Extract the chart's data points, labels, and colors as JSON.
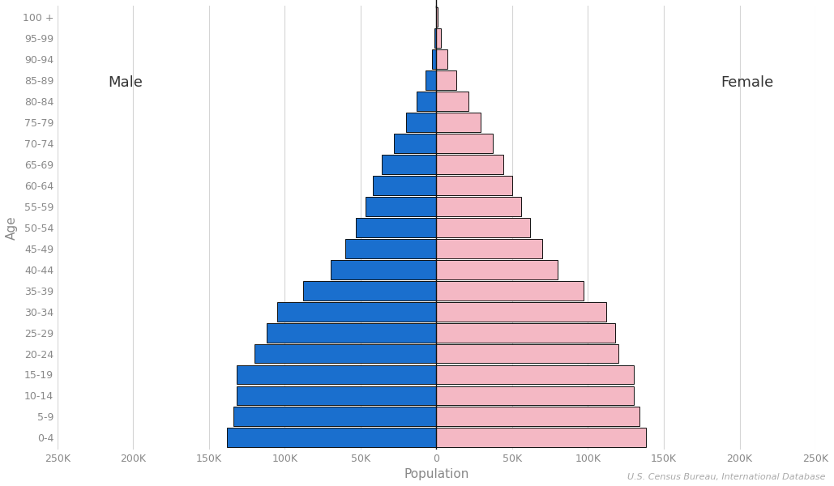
{
  "age_groups": [
    "0-4",
    "5-9",
    "10-14",
    "15-19",
    "20-24",
    "25-29",
    "30-34",
    "35-39",
    "40-44",
    "45-49",
    "50-54",
    "55-59",
    "60-64",
    "65-69",
    "70-74",
    "75-79",
    "80-84",
    "85-89",
    "90-94",
    "95-99",
    "100 +"
  ],
  "male": [
    138000,
    134000,
    132000,
    132000,
    120000,
    112000,
    105000,
    88000,
    70000,
    60000,
    53000,
    47000,
    42000,
    36000,
    28000,
    20000,
    13000,
    7000,
    3000,
    1200,
    300
  ],
  "female": [
    138000,
    134000,
    130000,
    130000,
    120000,
    118000,
    112000,
    97000,
    80000,
    70000,
    62000,
    56000,
    50000,
    44000,
    37000,
    29000,
    21000,
    13000,
    7500,
    2800,
    800
  ],
  "male_color": "#1a6fce",
  "female_color": "#f4b8c4",
  "bar_edge_color": "#111111",
  "bar_linewidth": 0.7,
  "grid_color": "#d5d5d5",
  "background_color": "#ffffff",
  "xlabel": "Population",
  "ylabel": "Age",
  "male_label": "Male",
  "female_label": "Female",
  "xlim": 250000,
  "xtick_step": 50000,
  "source_text": "U.S. Census Bureau, International Database",
  "vline_color": "#111111",
  "vline_linewidth": 1.0,
  "label_color": "#333333",
  "tick_label_color": "#888888",
  "axis_label_color": "#888888"
}
